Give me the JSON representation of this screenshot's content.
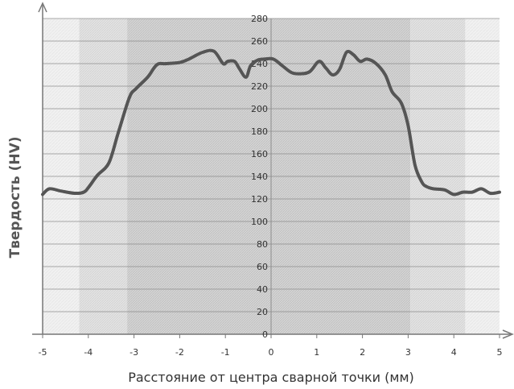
{
  "chart_data": {
    "type": "line",
    "xlabel": "Расстояние от центра сварной точки (мм)",
    "ylabel": "Твердость (HV)",
    "xlim": [
      -5,
      5
    ],
    "ylim": [
      0,
      280
    ],
    "x_ticks": [
      "-5",
      "-4",
      "-3",
      "-2",
      "-1",
      "0",
      "1",
      "2",
      "3",
      "4",
      "5"
    ],
    "y_ticks": [
      "0",
      "20",
      "40",
      "60",
      "80",
      "100",
      "120",
      "140",
      "160",
      "180",
      "200",
      "220",
      "240",
      "260",
      "280"
    ],
    "x_tick_values": [
      -5,
      -4,
      -3,
      -2,
      -1,
      0,
      1,
      2,
      3,
      4,
      5
    ],
    "y_tick_values": [
      0,
      20,
      40,
      60,
      80,
      100,
      120,
      140,
      160,
      180,
      200,
      220,
      240,
      260,
      280
    ],
    "zones": [
      {
        "x_start": -5,
        "x_end": -4.2,
        "shade": "light"
      },
      {
        "x_start": -4.2,
        "x_end": -3.15,
        "shade": "medium"
      },
      {
        "x_start": -3.15,
        "x_end": 3.05,
        "shade": "dark"
      },
      {
        "x_start": 3.05,
        "x_end": 4.25,
        "shade": "medium"
      },
      {
        "x_start": 4.25,
        "x_end": 5,
        "shade": "light"
      }
    ],
    "grid": true,
    "line_color": "#555555",
    "series": [
      {
        "x": [
          -5,
          -4.85,
          -4.6,
          -4.3,
          -4.1,
          -4.0,
          -3.8,
          -3.55,
          -3.35,
          -3.1,
          -2.95,
          -2.7,
          -2.5,
          -2.3,
          -2.0,
          -1.8,
          -1.5,
          -1.25,
          -1.05,
          -0.95,
          -0.8,
          -0.7,
          -0.55,
          -0.45,
          -0.3,
          -0.15,
          0.05,
          0.25,
          0.45,
          0.65,
          0.85,
          1.05,
          1.2,
          1.35,
          1.5,
          1.65,
          1.8,
          1.95,
          2.1,
          2.3,
          2.5,
          2.65,
          2.85,
          3.0,
          3.15,
          3.3,
          3.4,
          3.55,
          3.8,
          4.0,
          4.2,
          4.4,
          4.6,
          4.8,
          5.0
        ],
        "y": [
          124,
          129,
          127,
          125,
          126,
          130,
          141,
          152,
          178,
          210,
          218,
          228,
          239,
          240,
          241,
          244,
          250,
          251,
          240,
          242,
          242,
          236,
          228,
          238,
          243,
          244,
          244,
          238,
          232,
          231,
          233,
          242,
          236,
          230,
          235,
          250,
          248,
          242,
          244,
          240,
          230,
          215,
          205,
          185,
          150,
          135,
          131,
          129,
          128,
          124,
          126,
          126,
          129,
          125,
          126
        ]
      }
    ]
  }
}
